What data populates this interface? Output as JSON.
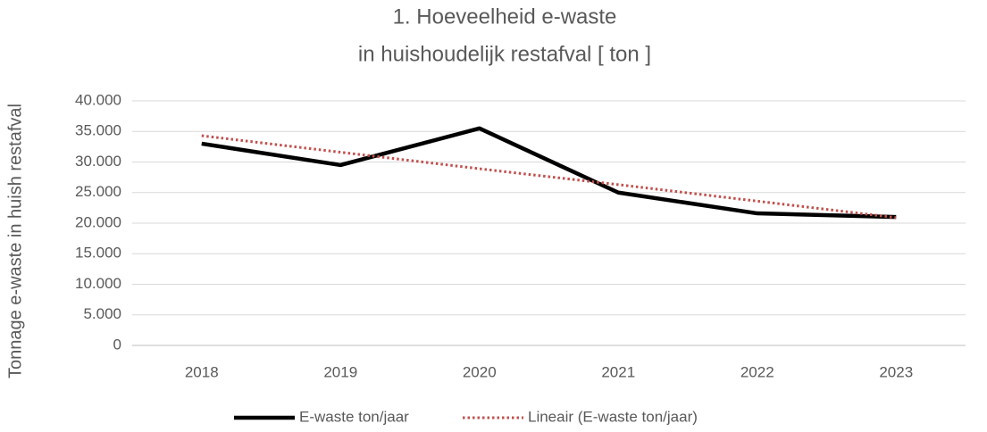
{
  "chart_data": {
    "type": "line",
    "title": [
      "1. Hoeveelheid e-waste",
      "in huishoudelijk restafval [ ton ]"
    ],
    "y_label": "Tonnage e-waste in huish restafval",
    "categories": [
      "2018",
      "2019",
      "2020",
      "2021",
      "2022",
      "2023"
    ],
    "series": [
      {
        "name": "E-waste ton/jaar",
        "color": "#000000",
        "style": "solid",
        "values": [
          33000,
          29500,
          35500,
          25000,
          21600,
          21000
        ]
      },
      {
        "name": "Lineair (E-waste ton/jaar)",
        "color": "#c0504d",
        "style": "dotted",
        "values": [
          34300,
          31600,
          28900,
          26300,
          23600,
          20900
        ]
      }
    ],
    "ylim": [
      0,
      40000
    ],
    "yticks": [
      0,
      {
        "value": 5000,
        "label": "5.000"
      },
      {
        "value": 10000,
        "label": "10.000"
      },
      {
        "value": 15000,
        "label": "15.000"
      },
      {
        "value": 20000,
        "label": "20.000"
      },
      {
        "value": 25000,
        "label": "25.000"
      },
      {
        "value": 30000,
        "label": "30.000"
      },
      {
        "value": 35000,
        "label": "35.000"
      },
      {
        "value": 40000,
        "label": "40.000"
      }
    ],
    "grid": true,
    "legend": "bottom"
  }
}
